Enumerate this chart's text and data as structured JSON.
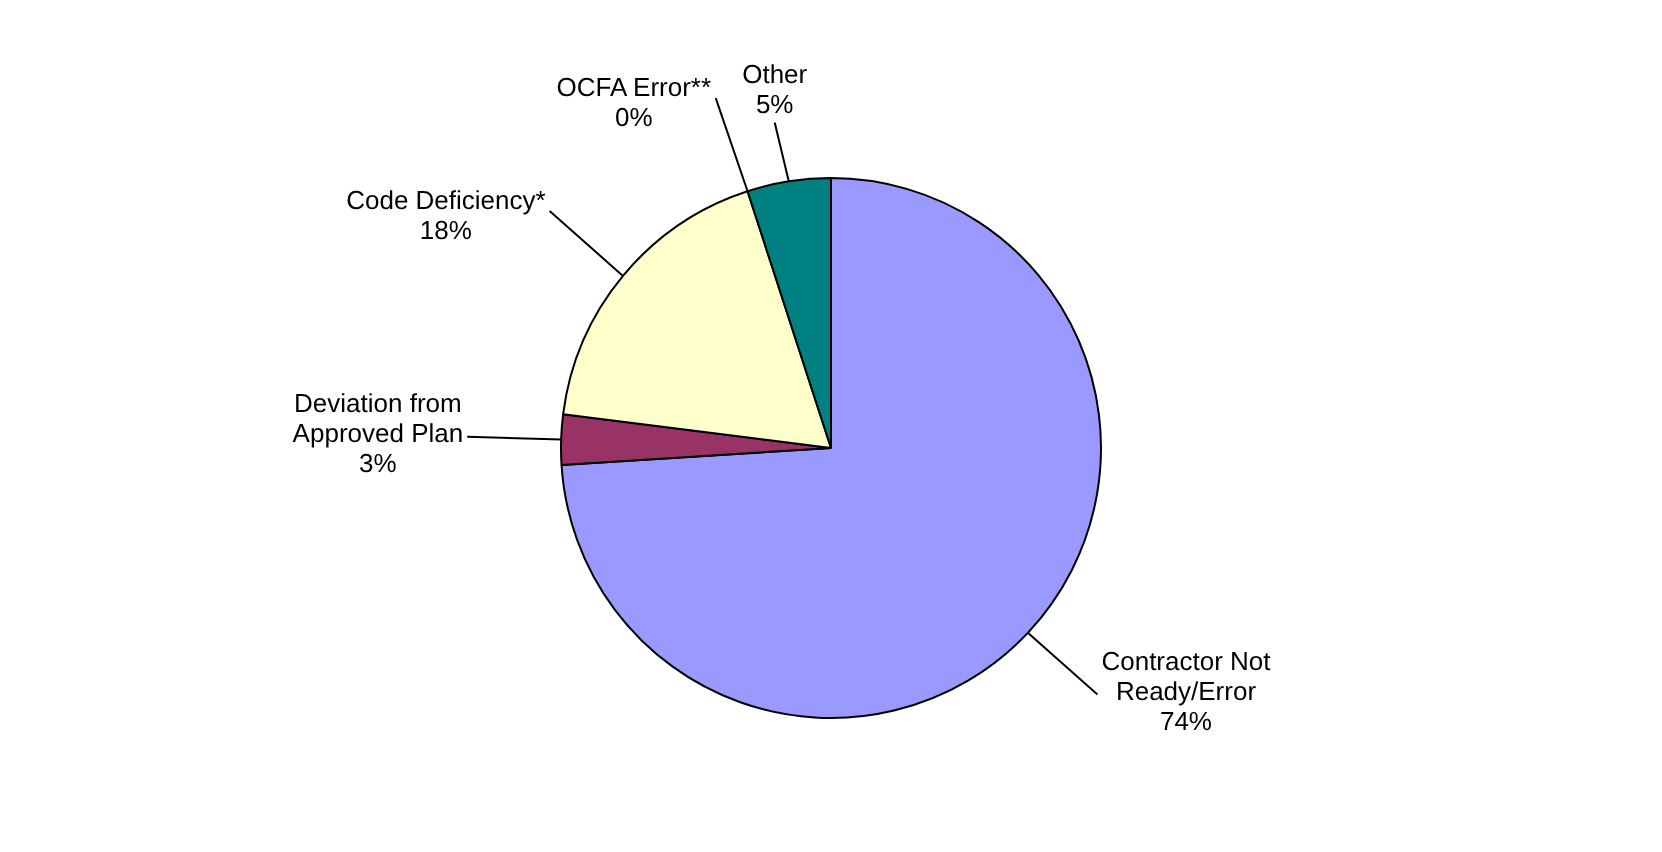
{
  "chart_data": {
    "type": "pie",
    "categories": [
      "Contractor Not Ready/Error",
      "Deviation from Approved Plan",
      "Code Deficiency*",
      "OCFA Error**",
      "Other"
    ],
    "values": [
      74,
      3,
      18,
      0,
      5
    ],
    "colors": [
      "#9999ff",
      "#993366",
      "#ffffcc",
      "#ffffcc",
      "#008080"
    ],
    "value_labels": [
      "74%",
      "3%",
      "18%",
      "0%",
      "5%"
    ],
    "legend": false
  }
}
